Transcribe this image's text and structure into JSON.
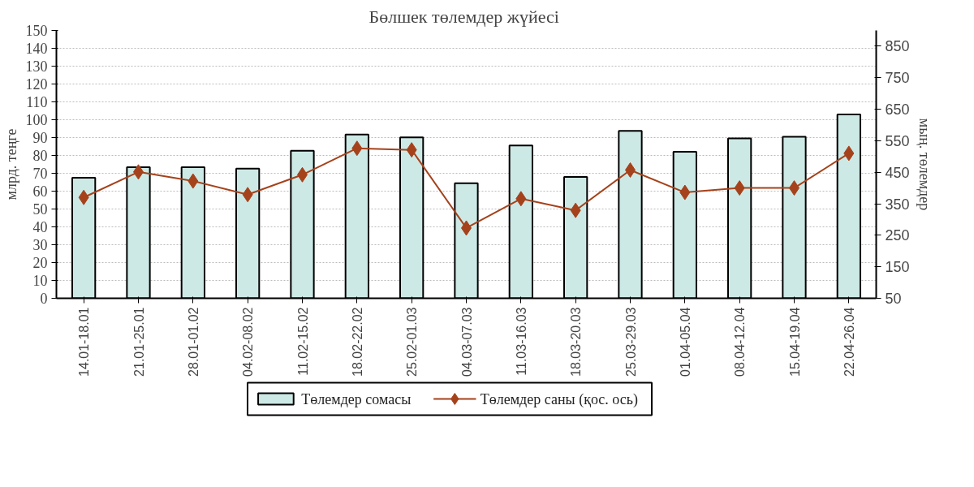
{
  "chart_data": {
    "type": "bar",
    "title": "Бөлшек  төлемдер жүйесі",
    "ylabel": "млрд. теңге",
    "y2label": "мың. төлемдер",
    "categories": [
      "14.01-18.01",
      "21.01-25.01",
      "28.01-01.02",
      "04.02-08.02",
      "11.02-15.02",
      "18.02-22.02",
      "25.02-01.03",
      "04.03-07.03",
      "11.03-16.03",
      "18.03-20.03",
      "25.03-29.03",
      "01.04-05.04",
      "08.04-12.04",
      "15.04-19.04",
      "22.04-26.04"
    ],
    "series": [
      {
        "name": "Төлемдер сомасы",
        "color": "#cde9e6",
        "values": [
          67.5,
          73.4,
          73.4,
          72.6,
          82.6,
          91.7,
          90.1,
          64.4,
          85.6,
          68,
          93.7,
          82,
          89.6,
          90.5,
          102.9
        ]
      },
      {
        "name": "Төлемдер саны (қос. ось)",
        "type": "line",
        "axis": "y2",
        "color": "#a5421b",
        "marker": "diamond",
        "values": [
          370,
          451,
          422,
          379,
          442,
          526,
          521,
          273,
          366,
          329,
          457,
          386,
          400,
          400,
          510
        ]
      }
    ],
    "ylim": [
      0,
      150
    ],
    "yticks": [
      0,
      10,
      20,
      30,
      40,
      50,
      60,
      70,
      80,
      90,
      100,
      110,
      120,
      130,
      140,
      150
    ],
    "y2lim": [
      50,
      900
    ],
    "y2ticks": [
      50,
      150,
      250,
      350,
      450,
      550,
      650,
      750,
      850
    ],
    "grid": "y",
    "legend": "bottom"
  }
}
